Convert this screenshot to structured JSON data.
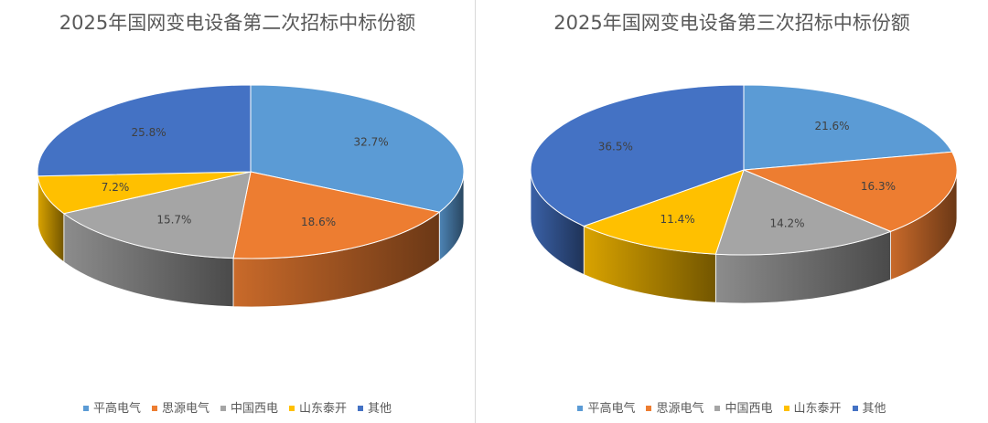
{
  "colors": {
    "平高电气": "#5B9BD5",
    "思源电气": "#ED7D31",
    "中国西电": "#A5A5A5",
    "山东泰开": "#FFC000",
    "其他": "#4472C4"
  },
  "chart_data": [
    {
      "type": "pie",
      "title": "2025年国网变电设备第二次招标中标份额",
      "categories": [
        "平高电气",
        "思源电气",
        "中国西电",
        "山东泰开",
        "其他"
      ],
      "values": [
        32.7,
        18.6,
        15.7,
        7.2,
        25.8
      ],
      "data_labels": [
        "32.7%",
        "18.6%",
        "15.7%",
        "7.2%",
        "25.8%"
      ],
      "legend_position": "bottom"
    },
    {
      "type": "pie",
      "title": "2025年国网变电设备第三次招标中标份额",
      "categories": [
        "平高电气",
        "思源电气",
        "中国西电",
        "山东泰开",
        "其他"
      ],
      "values": [
        21.6,
        16.3,
        14.2,
        11.4,
        36.5
      ],
      "data_labels": [
        "21.6%",
        "16.3%",
        "14.2%",
        "11.4%",
        "36.5%"
      ],
      "legend_position": "bottom"
    }
  ]
}
